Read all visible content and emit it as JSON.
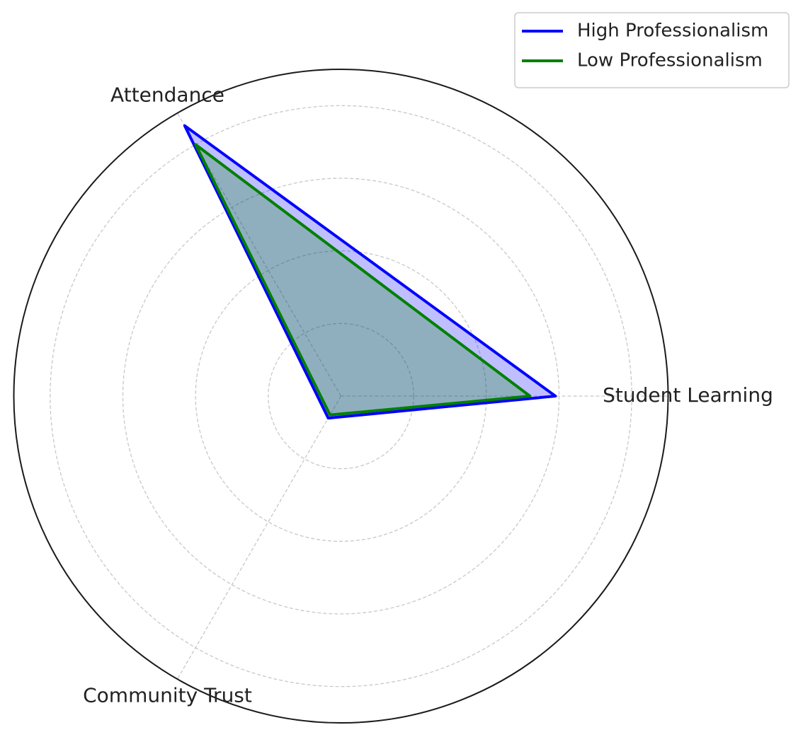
{
  "chart_data": {
    "type": "radar",
    "categories": [
      "Student Learning",
      "Attendance",
      "Community Trust"
    ],
    "series": [
      {
        "name": "High Professionalism",
        "color": "#0000ff",
        "values": [
          59,
          86,
          7
        ]
      },
      {
        "name": "Low Professionalism",
        "color": "#008000",
        "values": [
          52,
          80,
          6
        ]
      }
    ],
    "ylim": [
      0,
      90
    ],
    "yticks": [
      20,
      40,
      60,
      80
    ],
    "grid": true,
    "legend": "upper right"
  }
}
